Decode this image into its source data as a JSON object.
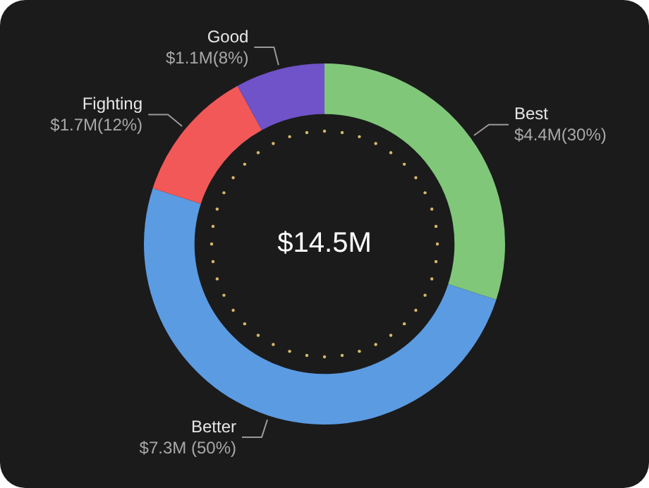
{
  "chart_data": {
    "type": "donut",
    "categories": [
      "Best",
      "Better",
      "Fighting",
      "Good"
    ],
    "values": [
      30,
      50,
      12,
      8
    ],
    "colors": [
      "#80c77a",
      "#5b9be2",
      "#f25858",
      "#7052c9"
    ],
    "value_labels": [
      "$4.4M(30%)",
      "$7.3M (50%)",
      "$1.7M(12%)",
      "$1.1M(8%)"
    ],
    "annotations": [
      "$14.5M"
    ],
    "legend": false
  }
}
